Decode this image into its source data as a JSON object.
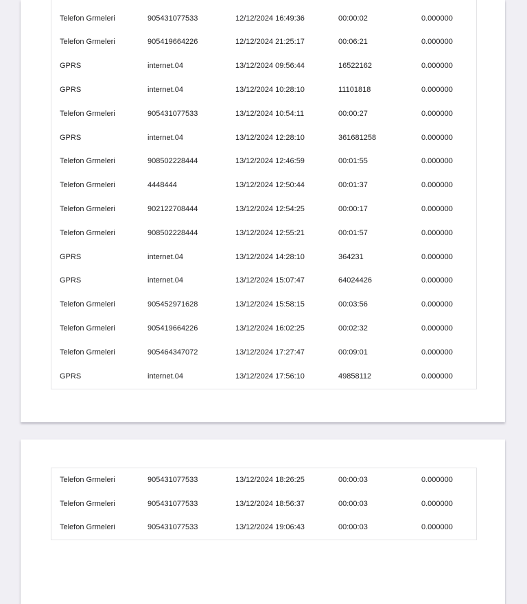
{
  "viewer": {
    "background_color": "#f0eff4",
    "page_color": "#ffffff",
    "table_border_color": "#e4e4e7",
    "text_color": "#1d1d1f"
  },
  "pages": [
    {
      "name": "page-1",
      "rows": [
        [
          "Telefon Grmeleri",
          "905431077533",
          "12/12/2024 16:49:36",
          "00:00:02",
          "0.000000"
        ],
        [
          "Telefon Grmeleri",
          "905419664226",
          "12/12/2024 21:25:17",
          "00:06:21",
          "0.000000"
        ],
        [
          "GPRS",
          "internet.04",
          "13/12/2024 09:56:44",
          "16522162",
          "0.000000"
        ],
        [
          "GPRS",
          "internet.04",
          "13/12/2024 10:28:10",
          "11101818",
          "0.000000"
        ],
        [
          "Telefon Grmeleri",
          "905431077533",
          "13/12/2024 10:54:11",
          "00:00:27",
          "0.000000"
        ],
        [
          "GPRS",
          "internet.04",
          "13/12/2024 12:28:10",
          "361681258",
          "0.000000"
        ],
        [
          "Telefon Grmeleri",
          "908502228444",
          "13/12/2024 12:46:59",
          "00:01:55",
          "0.000000"
        ],
        [
          "Telefon Grmeleri",
          "4448444",
          "13/12/2024 12:50:44",
          "00:01:37",
          "0.000000"
        ],
        [
          "Telefon Grmeleri",
          "902122708444",
          "13/12/2024 12:54:25",
          "00:00:17",
          "0.000000"
        ],
        [
          "Telefon Grmeleri",
          "908502228444",
          "13/12/2024 12:55:21",
          "00:01:57",
          "0.000000"
        ],
        [
          "GPRS",
          "internet.04",
          "13/12/2024 14:28:10",
          "364231",
          "0.000000"
        ],
        [
          "GPRS",
          "internet.04",
          "13/12/2024 15:07:47",
          "64024426",
          "0.000000"
        ],
        [
          "Telefon Grmeleri",
          "905452971628",
          "13/12/2024 15:58:15",
          "00:03:56",
          "0.000000"
        ],
        [
          "Telefon Grmeleri",
          "905419664226",
          "13/12/2024 16:02:25",
          "00:02:32",
          "0.000000"
        ],
        [
          "Telefon Grmeleri",
          "905464347072",
          "13/12/2024 17:27:47",
          "00:09:01",
          "0.000000"
        ],
        [
          "GPRS",
          "internet.04",
          "13/12/2024 17:56:10",
          "49858112",
          "0.000000"
        ]
      ]
    },
    {
      "name": "page-2",
      "rows": [
        [
          "Telefon Grmeleri",
          "905431077533",
          "13/12/2024 18:26:25",
          "00:00:03",
          "0.000000"
        ],
        [
          "Telefon Grmeleri",
          "905431077533",
          "13/12/2024 18:56:37",
          "00:00:03",
          "0.000000"
        ],
        [
          "Telefon Grmeleri",
          "905431077533",
          "13/12/2024 19:06:43",
          "00:00:03",
          "0.000000"
        ]
      ]
    }
  ]
}
